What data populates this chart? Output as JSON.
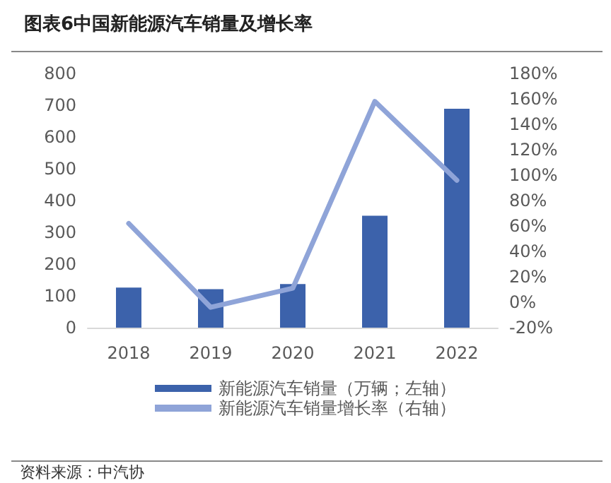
{
  "chart_data": {
    "type": "bar",
    "title": "图表6中国新能源汽车销量及增长率",
    "categories": [
      "2018",
      "2019",
      "2020",
      "2021",
      "2022"
    ],
    "series": [
      {
        "name": "新能源汽车销量（万辆；左轴）",
        "color": "#3c62ab",
        "values": [
          126,
          121,
          137,
          352,
          689
        ]
      },
      {
        "name": "新能源汽车销量增长率（右轴）",
        "type": "line",
        "axis": "y2",
        "color": "#8fa4d8",
        "values": [
          62,
          -4,
          11,
          158,
          96
        ]
      }
    ],
    "ylim": [
      0,
      800
    ],
    "yticks": [
      0,
      100,
      200,
      300,
      400,
      500,
      600,
      700,
      800
    ],
    "y2lim": [
      -20,
      180
    ],
    "y2ticks": [
      {
        "value": -20,
        "label": "-20%"
      },
      {
        "value": 0,
        "label": "0%"
      },
      {
        "value": 20,
        "label": "20%"
      },
      {
        "value": 40,
        "label": "40%"
      },
      {
        "value": 60,
        "label": "60%"
      },
      {
        "value": 80,
        "label": "80%"
      },
      {
        "value": 100,
        "label": "100%"
      },
      {
        "value": 120,
        "label": "120%"
      },
      {
        "value": 140,
        "label": "140%"
      },
      {
        "value": 160,
        "label": "160%"
      },
      {
        "value": 180,
        "label": "180%"
      }
    ],
    "legend": "bottom",
    "grid": false,
    "marker": "none",
    "annotations": [
      "资料来源：中汽协"
    ]
  }
}
